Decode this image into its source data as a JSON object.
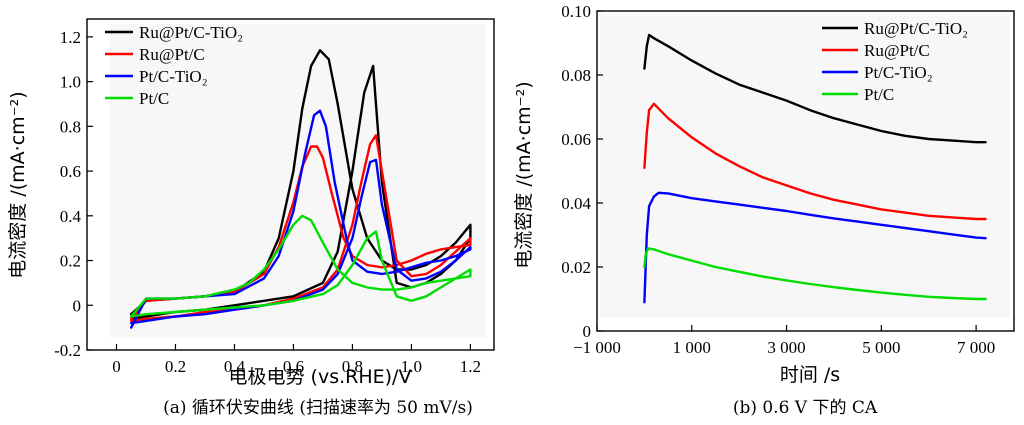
{
  "chart_data": [
    {
      "type": "line",
      "caption": "(a) 循环伏安曲线 (扫描速率为 50 mV/s)",
      "xlabel": "电极电势 (vs.RHE)/V",
      "ylabel": "电流密度 /(mA·cm⁻²)",
      "xlim": [
        -0.1,
        1.28
      ],
      "ylim": [
        -0.2,
        1.28
      ],
      "x_ticks": [
        "0",
        "0.2",
        "0.4",
        "0.6",
        "0.8",
        "1.0",
        "1.2"
      ],
      "x_tick_values": [
        0,
        0.2,
        0.4,
        0.6,
        0.8,
        1.0,
        1.2
      ],
      "y_ticks": [
        "-0.2",
        "0",
        "0.2",
        "0.4",
        "0.6",
        "0.8",
        "1.0",
        "1.2"
      ],
      "y_tick_values": [
        -0.2,
        0,
        0.2,
        0.4,
        0.6,
        0.8,
        1.0,
        1.2
      ],
      "grid": false,
      "legend_position": "top-left",
      "series": [
        {
          "name": "Ru@Pt/C-TiO₂",
          "color": "#000000",
          "x": [
            0.05,
            0.1,
            0.2,
            0.3,
            0.4,
            0.5,
            0.55,
            0.6,
            0.63,
            0.66,
            0.69,
            0.72,
            0.75,
            0.8,
            0.85,
            0.9,
            0.95,
            1.0,
            1.05,
            1.1,
            1.15,
            1.2,
            1.2,
            1.15,
            1.1,
            1.05,
            1.0,
            0.95,
            0.9,
            0.87,
            0.84,
            0.8,
            0.75,
            0.7,
            0.6,
            0.5,
            0.4,
            0.3,
            0.2,
            0.1,
            0.05
          ],
          "y": [
            -0.04,
            0.02,
            0.03,
            0.04,
            0.06,
            0.15,
            0.3,
            0.6,
            0.88,
            1.07,
            1.14,
            1.1,
            0.9,
            0.52,
            0.3,
            0.2,
            0.16,
            0.16,
            0.18,
            0.22,
            0.28,
            0.36,
            0.3,
            0.2,
            0.14,
            0.1,
            0.08,
            0.1,
            0.55,
            1.07,
            0.95,
            0.6,
            0.24,
            0.1,
            0.04,
            0.02,
            0.0,
            -0.02,
            -0.03,
            -0.05,
            -0.06
          ]
        },
        {
          "name": "Ru@Pt/C",
          "color": "#ff0000",
          "x": [
            0.05,
            0.1,
            0.2,
            0.3,
            0.4,
            0.5,
            0.55,
            0.6,
            0.63,
            0.66,
            0.68,
            0.7,
            0.73,
            0.77,
            0.8,
            0.85,
            0.9,
            0.95,
            1.0,
            1.05,
            1.1,
            1.15,
            1.2,
            1.2,
            1.15,
            1.1,
            1.05,
            1.0,
            0.95,
            0.9,
            0.88,
            0.86,
            0.83,
            0.8,
            0.75,
            0.7,
            0.6,
            0.5,
            0.4,
            0.3,
            0.2,
            0.1,
            0.05
          ],
          "y": [
            -0.06,
            0.02,
            0.03,
            0.04,
            0.06,
            0.14,
            0.26,
            0.46,
            0.62,
            0.71,
            0.71,
            0.66,
            0.5,
            0.3,
            0.22,
            0.18,
            0.17,
            0.18,
            0.2,
            0.23,
            0.25,
            0.26,
            0.27,
            0.3,
            0.24,
            0.18,
            0.14,
            0.13,
            0.2,
            0.6,
            0.76,
            0.72,
            0.55,
            0.36,
            0.16,
            0.08,
            0.03,
            0.0,
            -0.02,
            -0.03,
            -0.05,
            -0.06,
            -0.07
          ]
        },
        {
          "name": "Pt/C-TiO₂",
          "color": "#0000ff",
          "x": [
            0.05,
            0.1,
            0.2,
            0.3,
            0.4,
            0.5,
            0.55,
            0.6,
            0.64,
            0.67,
            0.69,
            0.71,
            0.74,
            0.78,
            0.8,
            0.85,
            0.9,
            0.95,
            1.0,
            1.05,
            1.1,
            1.15,
            1.2,
            1.2,
            1.15,
            1.1,
            1.05,
            1.0,
            0.95,
            0.9,
            0.88,
            0.86,
            0.83,
            0.8,
            0.75,
            0.7,
            0.6,
            0.5,
            0.4,
            0.3,
            0.2,
            0.1,
            0.05
          ],
          "y": [
            -0.1,
            0.03,
            0.03,
            0.04,
            0.05,
            0.12,
            0.22,
            0.42,
            0.68,
            0.85,
            0.87,
            0.8,
            0.55,
            0.3,
            0.2,
            0.15,
            0.14,
            0.15,
            0.17,
            0.19,
            0.2,
            0.22,
            0.25,
            0.26,
            0.2,
            0.15,
            0.12,
            0.11,
            0.16,
            0.45,
            0.65,
            0.64,
            0.48,
            0.3,
            0.14,
            0.07,
            0.02,
            0.0,
            -0.02,
            -0.04,
            -0.05,
            -0.07,
            -0.08
          ]
        },
        {
          "name": "Pt/C",
          "color": "#00dd00",
          "x": [
            0.05,
            0.1,
            0.2,
            0.3,
            0.4,
            0.45,
            0.5,
            0.55,
            0.6,
            0.63,
            0.66,
            0.7,
            0.75,
            0.8,
            0.85,
            0.9,
            0.95,
            1.0,
            1.05,
            1.1,
            1.15,
            1.2,
            1.2,
            1.15,
            1.1,
            1.05,
            1.0,
            0.95,
            0.9,
            0.88,
            0.85,
            0.8,
            0.75,
            0.7,
            0.6,
            0.5,
            0.4,
            0.3,
            0.2,
            0.1,
            0.05
          ],
          "y": [
            -0.05,
            0.03,
            0.03,
            0.04,
            0.07,
            0.1,
            0.16,
            0.25,
            0.36,
            0.4,
            0.38,
            0.28,
            0.16,
            0.1,
            0.08,
            0.07,
            0.07,
            0.08,
            0.1,
            0.11,
            0.12,
            0.13,
            0.16,
            0.12,
            0.08,
            0.04,
            0.02,
            0.04,
            0.2,
            0.33,
            0.3,
            0.18,
            0.09,
            0.05,
            0.02,
            0.0,
            -0.01,
            -0.02,
            -0.03,
            -0.04,
            -0.05
          ]
        }
      ]
    },
    {
      "type": "line",
      "caption": "(b) 0.6 V 下的 CA",
      "xlabel": "时间 /s",
      "ylabel": "电流密度 /(mA·cm⁻²)",
      "xlim": [
        -1000,
        7800
      ],
      "ylim": [
        0,
        0.1
      ],
      "x_ticks": [
        "−1 000",
        "1 000",
        "3 000",
        "5 000",
        "7 000"
      ],
      "x_tick_values": [
        -1000,
        1000,
        3000,
        5000,
        7000
      ],
      "y_ticks": [
        "0",
        "0.02",
        "0.04",
        "0.06",
        "0.08",
        "0.10"
      ],
      "y_tick_values": [
        0,
        0.02,
        0.04,
        0.06,
        0.08,
        0.1
      ],
      "grid": false,
      "legend_position": "top-right",
      "series": [
        {
          "name": "Ru@Pt/C-TiO₂",
          "color": "#000000",
          "x": [
            0,
            50,
            100,
            200,
            500,
            1000,
            1500,
            2000,
            2500,
            3000,
            3500,
            4000,
            4500,
            5000,
            5500,
            6000,
            6500,
            7000,
            7200
          ],
          "y": [
            0.082,
            0.089,
            0.0925,
            0.0915,
            0.089,
            0.0845,
            0.0805,
            0.077,
            0.0745,
            0.072,
            0.069,
            0.0665,
            0.0645,
            0.0625,
            0.061,
            0.06,
            0.0595,
            0.059,
            0.059
          ]
        },
        {
          "name": "Ru@Pt/C",
          "color": "#ff0000",
          "x": [
            0,
            50,
            100,
            200,
            500,
            1000,
            1500,
            2000,
            2500,
            3000,
            3500,
            4000,
            4500,
            5000,
            5500,
            6000,
            6500,
            7000,
            7200
          ],
          "y": [
            0.051,
            0.062,
            0.069,
            0.071,
            0.0665,
            0.0605,
            0.0555,
            0.0515,
            0.048,
            0.0455,
            0.043,
            0.041,
            0.0395,
            0.038,
            0.037,
            0.036,
            0.0355,
            0.035,
            0.035
          ]
        },
        {
          "name": "Pt/C-TiO₂",
          "color": "#0000ff",
          "x": [
            0,
            50,
            100,
            200,
            300,
            500,
            1000,
            1500,
            2000,
            2500,
            3000,
            3500,
            4000,
            4500,
            5000,
            5500,
            6000,
            6500,
            7000,
            7200
          ],
          "y": [
            0.009,
            0.03,
            0.039,
            0.042,
            0.0432,
            0.043,
            0.0415,
            0.0405,
            0.0395,
            0.0385,
            0.0375,
            0.0363,
            0.0352,
            0.0342,
            0.0332,
            0.0322,
            0.0312,
            0.0302,
            0.0292,
            0.029
          ]
        },
        {
          "name": "Pt/C",
          "color": "#00dd00",
          "x": [
            0,
            30,
            80,
            200,
            500,
            1000,
            1500,
            2000,
            2500,
            3000,
            3500,
            4000,
            4500,
            5000,
            5500,
            6000,
            6500,
            7000,
            7200
          ],
          "y": [
            0.02,
            0.024,
            0.0258,
            0.0255,
            0.024,
            0.022,
            0.02,
            0.0185,
            0.017,
            0.0158,
            0.0147,
            0.0137,
            0.0128,
            0.012,
            0.0113,
            0.0107,
            0.0103,
            0.01,
            0.01
          ]
        }
      ]
    }
  ]
}
